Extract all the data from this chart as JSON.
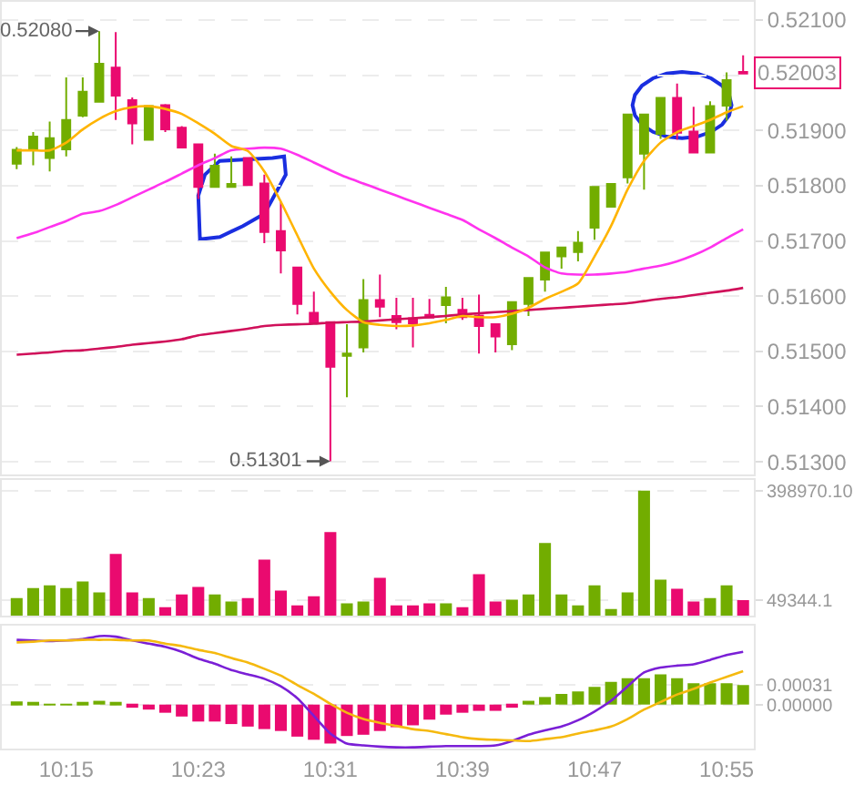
{
  "chart_data": [
    {
      "type": "candlestick",
      "categories": [
        null,
        null,
        null,
        "10:15",
        null,
        null,
        null,
        null,
        null,
        null,
        null,
        "10:23",
        null,
        null,
        null,
        null,
        null,
        null,
        null,
        "10:31",
        null,
        null,
        null,
        null,
        null,
        null,
        null,
        "10:39",
        null,
        null,
        null,
        null,
        null,
        null,
        null,
        "10:47",
        null,
        null,
        null,
        null,
        null,
        null,
        null,
        "10:55",
        null
      ],
      "ohlc": [
        [
          0.5184,
          0.5187,
          0.5183,
          0.51865
        ],
        [
          0.51864,
          0.51897,
          0.51837,
          0.51889
        ],
        [
          0.5185,
          0.51916,
          0.51826,
          0.51886
        ],
        [
          0.51866,
          0.51996,
          0.51853,
          0.51919
        ],
        [
          0.51927,
          0.51996,
          0.51924,
          0.5197
        ],
        [
          0.51952,
          0.5208,
          0.51952,
          0.52021
        ],
        [
          0.52014,
          0.52078,
          0.51919,
          0.51963
        ],
        [
          0.51955,
          0.5196,
          0.51875,
          0.51913
        ],
        [
          0.51883,
          0.51946,
          0.51883,
          0.51944
        ],
        [
          0.51946,
          0.51948,
          0.51897,
          0.51902
        ],
        [
          0.51905,
          0.51908,
          0.51869,
          0.51869
        ],
        [
          0.51875,
          0.51875,
          0.51776,
          0.51798
        ],
        [
          0.51798,
          0.51858,
          0.51798,
          0.51836
        ],
        [
          0.51798,
          0.51853,
          0.51798,
          0.51803
        ],
        [
          0.5185,
          0.5185,
          0.51801,
          0.51801
        ],
        [
          0.51804,
          0.5182,
          0.51696,
          0.51716
        ],
        [
          0.51718,
          0.51771,
          0.51641,
          0.51683
        ],
        [
          0.51652,
          0.51652,
          0.51567,
          0.51586
        ],
        [
          0.5157,
          0.51608,
          0.51551,
          0.51551
        ],
        [
          0.51553,
          0.51553,
          0.51301,
          0.51472
        ],
        [
          0.51492,
          0.51549,
          0.51417,
          0.51496
        ],
        [
          0.51507,
          0.51631,
          0.51498,
          0.51593
        ],
        [
          0.51593,
          0.51639,
          0.51562,
          0.51581
        ],
        [
          0.51564,
          0.51597,
          0.5154,
          0.51553
        ],
        [
          0.5156,
          0.51597,
          0.51507,
          0.51551
        ],
        [
          0.51566,
          0.51595,
          0.51561,
          0.51561
        ],
        [
          0.51584,
          0.51617,
          0.51551,
          0.51598
        ],
        [
          0.51575,
          0.51597,
          0.51557,
          0.51562
        ],
        [
          0.51565,
          0.51603,
          0.51496,
          0.51546
        ],
        [
          0.51549,
          0.51549,
          0.51498,
          0.51527
        ],
        [
          0.51513,
          0.51589,
          0.51502,
          0.51589
        ],
        [
          0.51586,
          0.51633,
          0.51564,
          0.51633
        ],
        [
          0.5163,
          0.51679,
          0.51608,
          0.51679
        ],
        [
          0.51672,
          0.51688,
          0.5165,
          0.51688
        ],
        [
          0.5168,
          0.51718,
          0.51663,
          0.51697
        ],
        [
          0.51724,
          0.51798,
          0.51702,
          0.51798
        ],
        [
          0.51762,
          0.51803,
          0.51762,
          0.51803
        ],
        [
          0.51815,
          0.51929,
          0.51804,
          0.51929
        ],
        [
          0.51858,
          0.51929,
          0.51793,
          0.51929
        ],
        [
          0.51894,
          0.51959,
          0.51885,
          0.51959
        ],
        [
          0.51959,
          0.51985,
          0.51883,
          0.51896
        ],
        [
          0.51898,
          0.51943,
          0.5186,
          0.5186
        ],
        [
          0.5186,
          0.51953,
          0.5186,
          0.51944
        ],
        [
          0.51945,
          0.52005,
          0.51918,
          0.51991
        ],
        [
          0.52006,
          0.52036,
          0.52003,
          0.52003
        ]
      ],
      "colors": [
        "#72ad00",
        "#72ad00",
        "#72ad00",
        "#72ad00",
        "#72ad00",
        "#72ad00",
        "#ea0a6f",
        "#ea0a6f",
        "#72ad00",
        "#ea0a6f",
        "#ea0a6f",
        "#ea0a6f",
        "#72ad00",
        "#72ad00",
        "#ea0a6f",
        "#ea0a6f",
        "#ea0a6f",
        "#ea0a6f",
        "#ea0a6f",
        "#ea0a6f",
        "#72ad00",
        "#72ad00",
        "#ea0a6f",
        "#ea0a6f",
        "#ea0a6f",
        "#ea0a6f",
        "#72ad00",
        "#ea0a6f",
        "#ea0a6f",
        "#ea0a6f",
        "#72ad00",
        "#72ad00",
        "#72ad00",
        "#72ad00",
        "#72ad00",
        "#72ad00",
        "#72ad00",
        "#72ad00",
        "#72ad00",
        "#72ad00",
        "#ea0a6f",
        "#ea0a6f",
        "#72ad00",
        "#72ad00",
        "#ea0a6f"
      ],
      "series": [
        {
          "type": "line",
          "color": "#d0105a",
          "values": [
            0.51494,
            0.51496,
            0.51498,
            0.51501,
            0.51502,
            0.51505,
            0.51508,
            0.51512,
            0.51515,
            0.51518,
            0.51522,
            0.51529,
            0.51533,
            0.51537,
            0.51541,
            0.51546,
            0.51548,
            0.51549,
            0.5155,
            0.51552,
            0.51553,
            0.51554,
            0.51556,
            0.51558,
            0.5156,
            0.51562,
            0.51564,
            0.51567,
            0.51569,
            0.51571,
            0.51573,
            0.51575,
            0.51577,
            0.51579,
            0.51581,
            0.51583,
            0.51585,
            0.51587,
            0.51591,
            0.51595,
            0.51598,
            0.51602,
            0.51606,
            0.5161,
            0.51615
          ]
        },
        {
          "type": "line",
          "color": "#ff33ee",
          "values": [
            0.51705,
            0.51714,
            0.51725,
            0.51736,
            0.51749,
            0.51754,
            0.51765,
            0.51779,
            0.51793,
            0.51807,
            0.51822,
            0.51837,
            0.5185,
            0.51864,
            0.51867,
            0.51869,
            0.51867,
            0.51856,
            0.51842,
            0.51828,
            0.51815,
            0.51804,
            0.51793,
            0.51782,
            0.51771,
            0.5176,
            0.51749,
            0.51738,
            0.51721,
            0.51705,
            0.51688,
            0.51672,
            0.51652,
            0.51641,
            0.51639,
            0.51639,
            0.51641,
            0.51644,
            0.5165,
            0.51655,
            0.51663,
            0.51674,
            0.51688,
            0.51705,
            0.51721
          ]
        },
        {
          "type": "line",
          "color": "#ffb400",
          "values": [
            0.51864,
            0.51864,
            0.51864,
            0.51878,
            0.51902,
            0.51921,
            0.51935,
            0.51942,
            0.51944,
            0.51939,
            0.5193,
            0.51913,
            0.51894,
            0.51872,
            0.51863,
            0.51826,
            0.51771,
            0.5171,
            0.5165,
            0.51608,
            0.51575,
            0.51553,
            0.51548,
            0.51546,
            0.51547,
            0.51551,
            0.51557,
            0.51564,
            0.51562,
            0.51562,
            0.51568,
            0.51579,
            0.51595,
            0.51608,
            0.51623,
            0.51672,
            0.51727,
            0.51793,
            0.51845,
            0.51878,
            0.51897,
            0.51908,
            0.51919,
            0.51933,
            0.51944
          ]
        }
      ],
      "ylim": [
        0.51277,
        0.52133
      ],
      "yticks": [
        {
          "value": 0.513,
          "label": "0.51300"
        },
        {
          "value": 0.514,
          "label": "0.51400"
        },
        {
          "value": 0.515,
          "label": "0.51500"
        },
        {
          "value": 0.516,
          "label": "0.51600"
        },
        {
          "value": 0.517,
          "label": "0.51700"
        },
        {
          "value": 0.518,
          "label": "0.51800"
        },
        {
          "value": 0.519,
          "label": "0.51900"
        },
        {
          "value": 0.52,
          "label": null
        },
        {
          "value": 0.521,
          "label": "0.52100"
        }
      ],
      "grid": "y",
      "tick_labels": "y",
      "annotations": [
        "0.52080",
        "0.51301",
        "0.52003"
      ]
    },
    {
      "type": "bar",
      "categories": [
        null,
        null,
        null,
        "10:15",
        null,
        null,
        null,
        null,
        null,
        null,
        null,
        "10:23",
        null,
        null,
        null,
        null,
        null,
        null,
        null,
        "10:31",
        null,
        null,
        null,
        null,
        null,
        null,
        null,
        "10:39",
        null,
        null,
        null,
        null,
        null,
        null,
        null,
        "10:47",
        null,
        null,
        null,
        null,
        null,
        null,
        null,
        "10:55",
        null
      ],
      "values": [
        56000,
        88000,
        97000,
        88000,
        109000,
        74000,
        197000,
        74000,
        56000,
        27000,
        68000,
        92000,
        68000,
        45000,
        56000,
        179000,
        80000,
        33000,
        62000,
        267000,
        39000,
        45000,
        121000,
        33000,
        33000,
        39000,
        39000,
        27000,
        132000,
        45000,
        51000,
        68000,
        232000,
        68000,
        33000,
        97000,
        21000,
        74000,
        398970.1,
        115000,
        86000,
        45000,
        56000,
        97000,
        49344.1
      ],
      "colors": [
        "#72ad00",
        "#72ad00",
        "#72ad00",
        "#72ad00",
        "#72ad00",
        "#72ad00",
        "#ea0a6f",
        "#ea0a6f",
        "#72ad00",
        "#ea0a6f",
        "#ea0a6f",
        "#ea0a6f",
        "#72ad00",
        "#72ad00",
        "#ea0a6f",
        "#ea0a6f",
        "#ea0a6f",
        "#ea0a6f",
        "#ea0a6f",
        "#ea0a6f",
        "#72ad00",
        "#72ad00",
        "#ea0a6f",
        "#ea0a6f",
        "#ea0a6f",
        "#ea0a6f",
        "#72ad00",
        "#ea0a6f",
        "#ea0a6f",
        "#ea0a6f",
        "#72ad00",
        "#72ad00",
        "#72ad00",
        "#72ad00",
        "#72ad00",
        "#72ad00",
        "#72ad00",
        "#72ad00",
        "#72ad00",
        "#72ad00",
        "#ea0a6f",
        "#ea0a6f",
        "#72ad00",
        "#72ad00",
        "#ea0a6f"
      ],
      "ylim": [
        0,
        433800
      ],
      "yticks": [
        {
          "value": 49344.1,
          "label": "49344.1"
        },
        {
          "value": 398970.1,
          "label": "398970.10"
        }
      ],
      "grid": "y",
      "tick_labels": "y"
    },
    {
      "type": "bar",
      "categories": [
        null,
        null,
        null,
        "10:15",
        null,
        null,
        null,
        null,
        null,
        null,
        null,
        "10:23",
        null,
        null,
        null,
        null,
        null,
        null,
        null,
        "10:31",
        null,
        null,
        null,
        null,
        null,
        null,
        null,
        "10:39",
        null,
        null,
        null,
        null,
        null,
        null,
        null,
        "10:47",
        null,
        null,
        null,
        null,
        null,
        null,
        null,
        "10:55",
        null
      ],
      "series": [
        {
          "type": "bar",
          "colors": [
            "#72ad00",
            "#72ad00",
            "#72ad00",
            "#72ad00",
            "#72ad00",
            "#72ad00",
            "#72ad00",
            "#ea0a6f",
            "#ea0a6f",
            "#ea0a6f",
            "#ea0a6f",
            "#ea0a6f",
            "#ea0a6f",
            "#ea0a6f",
            "#ea0a6f",
            "#ea0a6f",
            "#ea0a6f",
            "#ea0a6f",
            "#ea0a6f",
            "#ea0a6f",
            "#ea0a6f",
            "#ea0a6f",
            "#ea0a6f",
            "#ea0a6f",
            "#ea0a6f",
            "#ea0a6f",
            "#ea0a6f",
            "#ea0a6f",
            "#ea0a6f",
            "#ea0a6f",
            "#ea0a6f",
            "#72ad00",
            "#72ad00",
            "#72ad00",
            "#72ad00",
            "#72ad00",
            "#72ad00",
            "#72ad00",
            "#72ad00",
            "#72ad00",
            "#72ad00",
            "#72ad00",
            "#72ad00",
            "#72ad00",
            "#72ad00"
          ],
          "values": [
            5e-05,
            2e-05,
            1e-05,
            1e-05,
            3e-05,
            6e-05,
            3e-05,
            -5e-05,
            -8e-05,
            -0.00013,
            -0.00019,
            -0.00027,
            -0.00027,
            -0.00031,
            -0.00035,
            -0.00039,
            -0.00042,
            -0.00051,
            -0.00056,
            -0.00062,
            -0.0005,
            -0.00048,
            -0.00042,
            -0.00036,
            -0.00033,
            -0.00024,
            -0.00016,
            -0.00013,
            -0.0001,
            -0.0001,
            -5e-05,
            6e-05,
            0.00012,
            0.00017,
            0.00021,
            0.00028,
            0.00036,
            0.00042,
            0.00042,
            0.00048,
            0.00042,
            0.00034,
            0.00034,
            0.00034,
            0.00031
          ]
        },
        {
          "type": "line",
          "color": "#7a1fd6",
          "values": [
            0.00103,
            0.00102,
            0.00101,
            0.00102,
            0.00104,
            0.00109,
            0.00108,
            0.00102,
            0.00097,
            0.00092,
            0.00084,
            0.00073,
            0.00065,
            0.00055,
            0.00048,
            0.00041,
            0.00029,
            0.0001,
            -0.00018,
            -0.00046,
            -0.00062,
            -0.00065,
            -0.00067,
            -0.00068,
            -0.00068,
            -0.00067,
            -0.00066,
            -0.00066,
            -0.00066,
            -0.00065,
            -0.00058,
            -0.00048,
            -0.00041,
            -0.00035,
            -0.00025,
            -0.00011,
            6e-05,
            0.00029,
            0.00051,
            0.00059,
            0.00062,
            0.00064,
            0.00071,
            0.00079,
            0.00084
          ]
        },
        {
          "type": "line",
          "color": "#f5b90f",
          "values": [
            0.00099,
            0.001,
            0.00102,
            0.00102,
            0.00103,
            0.00103,
            0.00103,
            0.00102,
            0.00102,
            0.00097,
            0.00093,
            0.00087,
            0.00082,
            0.00074,
            0.00067,
            0.00057,
            0.00046,
            0.00031,
            0.00017,
            1e-05,
            -0.00013,
            -0.00023,
            -0.00029,
            -0.00034,
            -0.00039,
            -0.00042,
            -0.00047,
            -0.00052,
            -0.00055,
            -0.00056,
            -0.00057,
            -0.00058,
            -0.00055,
            -0.00052,
            -0.00046,
            -0.00041,
            -0.00035,
            -0.00023,
            -8e-05,
            4e-05,
            0.00016,
            0.00025,
            0.00035,
            0.00044,
            0.00053
          ]
        }
      ],
      "ylim": [
        -0.0007,
        0.00126
      ],
      "yticks": [
        {
          "value": 0,
          "label": "0.00000"
        },
        {
          "value": 0.00031,
          "label": "0.00031"
        }
      ],
      "grid": "y"
    }
  ]
}
